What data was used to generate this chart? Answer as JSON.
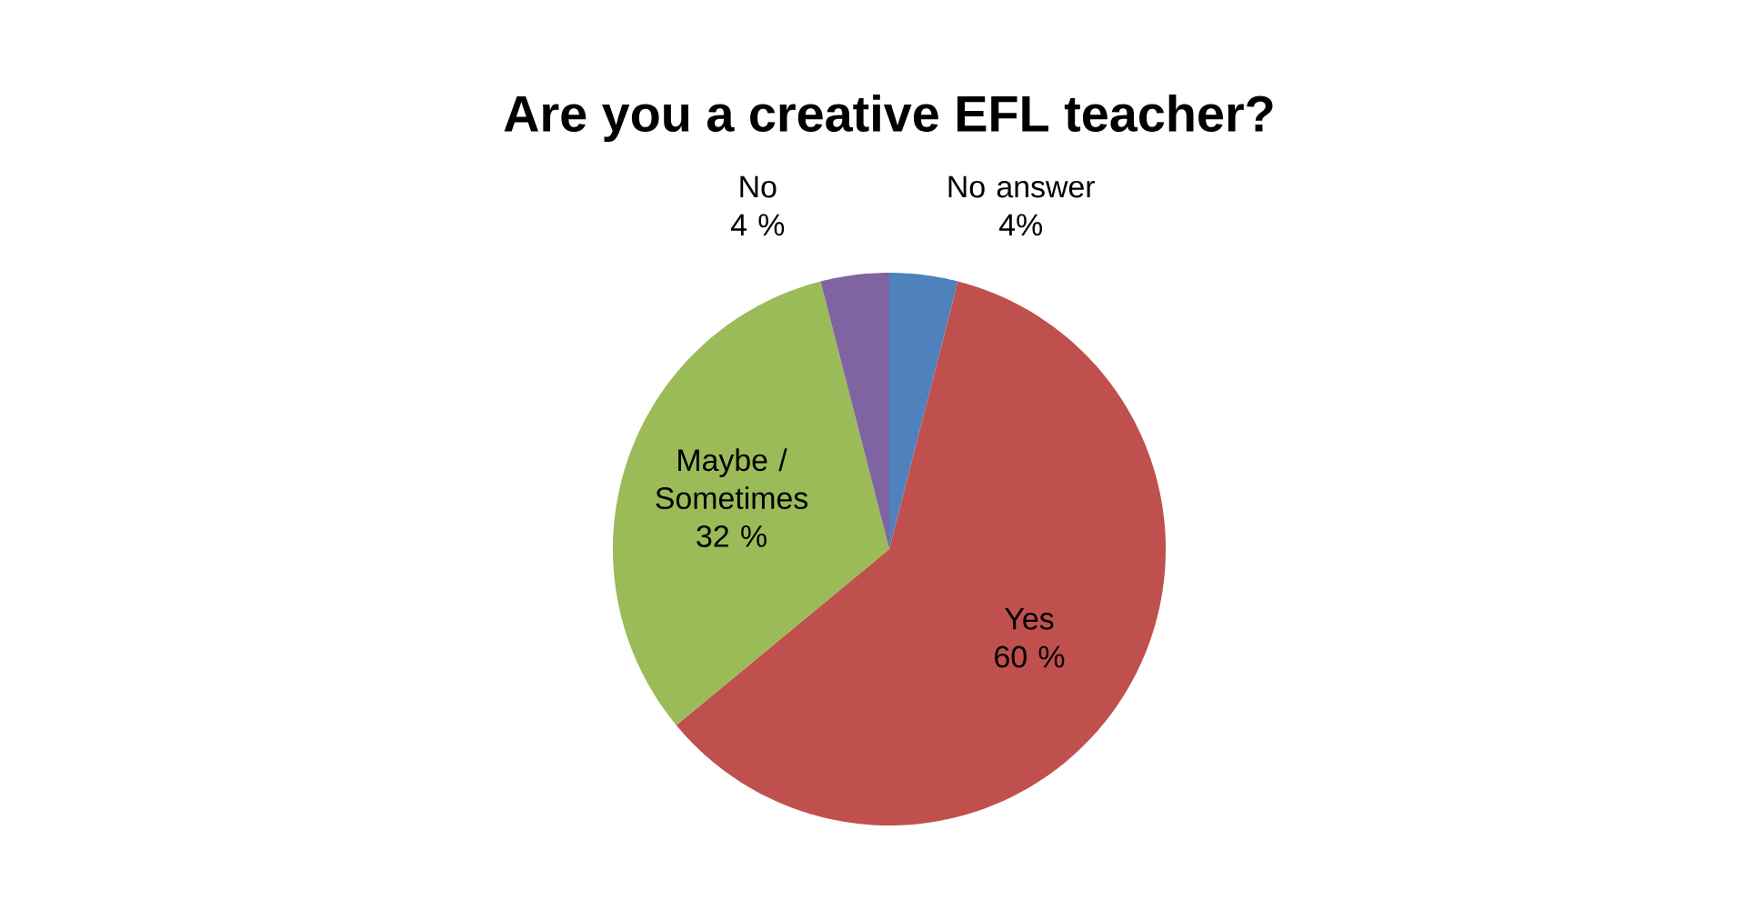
{
  "chart_data": {
    "type": "pie",
    "title": "Are you a creative EFL teacher?",
    "categories": [
      "No answer",
      "Yes",
      "Maybe / Sometimes",
      "No"
    ],
    "values": [
      4,
      60,
      32,
      4
    ],
    "colors": [
      "#4f81bd",
      "#c0504d",
      "#9bbb59",
      "#8064a2"
    ],
    "value_labels": [
      "4%",
      "60 %",
      "32 %",
      "4 %"
    ]
  }
}
